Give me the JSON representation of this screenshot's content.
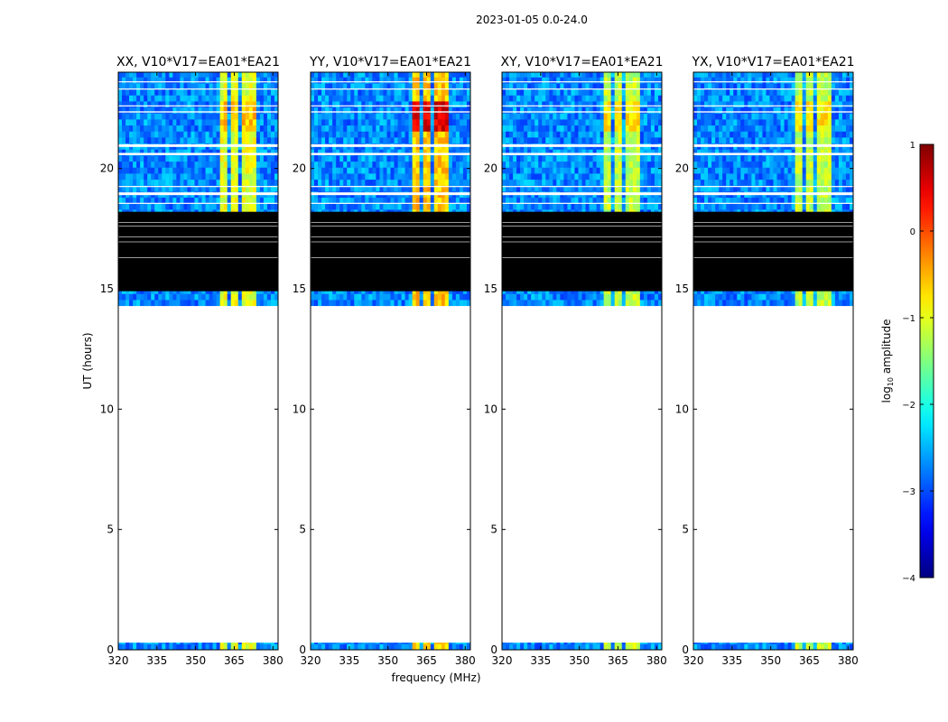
{
  "figure": {
    "suptitle": "2023-01-05 0.0-24.0",
    "xlabel": "frequency (MHz)",
    "ylabel": "UT (hours)",
    "colorbar": {
      "label_prefix": "log",
      "label_sub": "10",
      "label_suffix": " amplitude",
      "ticks": [
        1,
        0,
        -1,
        -2,
        -3,
        -4
      ],
      "tick_labels": [
        "1",
        "0",
        "−1",
        "−2",
        "−3",
        "−4"
      ],
      "range": [
        -4,
        1
      ],
      "colormap": "jet"
    }
  },
  "chart_data": [
    {
      "type": "heatmap",
      "title": "XX, V10*V17=EA01*EA21",
      "xlim": [
        320,
        382
      ],
      "ylim": [
        0,
        24
      ],
      "xticks": [
        320,
        335,
        350,
        365,
        380
      ],
      "yticks": [
        0,
        5,
        10,
        15,
        20
      ],
      "ytick_labels_shown": true,
      "signal_band_mhz": [
        360,
        375
      ],
      "data_ut_ranges": [
        [
          0.0,
          0.3
        ],
        [
          14.3,
          24.0
        ]
      ],
      "masked_ut_range": [
        14.9,
        18.2
      ]
    },
    {
      "type": "heatmap",
      "title": "YY, V10*V17=EA01*EA21",
      "xlim": [
        320,
        382
      ],
      "ylim": [
        0,
        24
      ],
      "xticks": [
        320,
        335,
        350,
        365,
        380
      ],
      "yticks": [
        0,
        5,
        10,
        15,
        20
      ],
      "ytick_labels_shown": true,
      "signal_band_mhz": [
        360,
        375
      ],
      "data_ut_ranges": [
        [
          0.0,
          0.3
        ],
        [
          14.3,
          24.0
        ]
      ],
      "masked_ut_range": [
        14.9,
        18.2
      ]
    },
    {
      "type": "heatmap",
      "title": "XY, V10*V17=EA01*EA21",
      "xlim": [
        320,
        382
      ],
      "ylim": [
        0,
        24
      ],
      "xticks": [
        320,
        335,
        350,
        365,
        380
      ],
      "yticks": [
        0,
        5,
        10,
        15,
        20
      ],
      "ytick_labels_shown": true,
      "signal_band_mhz": [
        360,
        375
      ],
      "data_ut_ranges": [
        [
          0.0,
          0.3
        ],
        [
          14.3,
          24.0
        ]
      ],
      "masked_ut_range": [
        14.9,
        18.2
      ]
    },
    {
      "type": "heatmap",
      "title": "YX, V10*V17=EA01*EA21",
      "xlim": [
        320,
        382
      ],
      "ylim": [
        0,
        24
      ],
      "xticks": [
        320,
        335,
        350,
        365,
        380
      ],
      "yticks": [
        0,
        5,
        10,
        15,
        20
      ],
      "ytick_labels_shown": true,
      "signal_band_mhz": [
        360,
        375
      ],
      "data_ut_ranges": [
        [
          0.0,
          0.3
        ],
        [
          14.3,
          24.0
        ]
      ],
      "masked_ut_range": [
        14.9,
        18.2
      ]
    }
  ]
}
